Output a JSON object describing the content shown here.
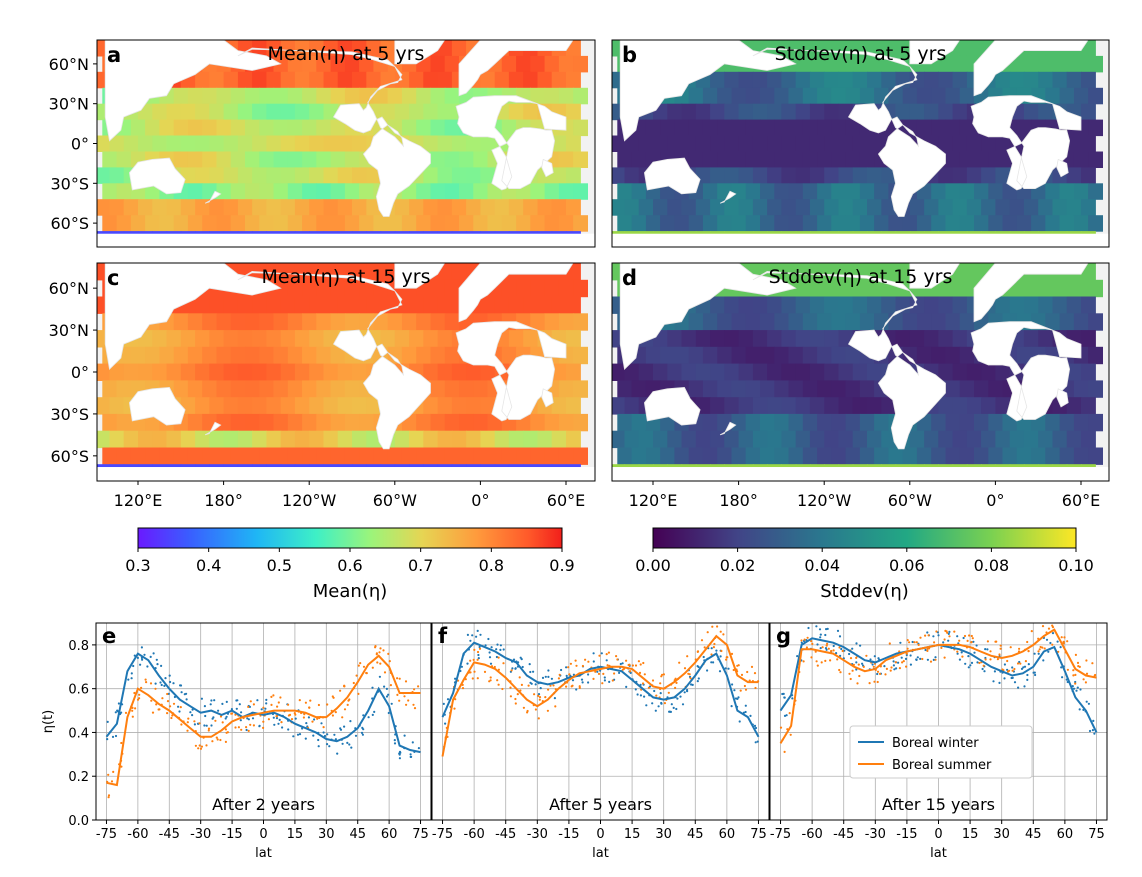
{
  "maps": [
    {
      "letter": "a",
      "title": "Mean(η) at 5 yrs",
      "kind": "mean",
      "variant": 5
    },
    {
      "letter": "b",
      "title": "Stddev(η) at 5 yrs",
      "kind": "std",
      "variant": 5
    },
    {
      "letter": "c",
      "title": "Mean(η) at 15 yrs",
      "kind": "mean",
      "variant": 15
    },
    {
      "letter": "d",
      "title": "Stddev(η) at 15 yrs",
      "kind": "std",
      "variant": 15
    }
  ],
  "map_lat_ticks": [
    "60°N",
    "30°N",
    "0°",
    "30°S",
    "60°S"
  ],
  "map_lon_ticks": [
    "120°E",
    "180°",
    "120°W",
    "60°W",
    "0°",
    "60°E"
  ],
  "colorbars": [
    {
      "label": "Mean(η)",
      "ticks": [
        "0.3",
        "0.4",
        "0.5",
        "0.6",
        "0.7",
        "0.8",
        "0.9"
      ],
      "palette": "turbo"
    },
    {
      "label": "Stddev(η)",
      "ticks": [
        "0.00",
        "0.02",
        "0.04",
        "0.06",
        "0.08",
        "0.10"
      ],
      "palette": "viridis"
    }
  ],
  "chart_data": {
    "type": "line",
    "xlabel": "lat",
    "ylabel": "η(t)",
    "xlim": [
      -80,
      80
    ],
    "ylim": [
      0.0,
      0.9
    ],
    "x_ticks": [
      "-75",
      "-60",
      "-45",
      "-30",
      "-15",
      "0",
      "15",
      "30",
      "45",
      "60",
      "75"
    ],
    "y_ticks": [
      "0.0",
      "0.2",
      "0.4",
      "0.6",
      "0.8"
    ],
    "grid": true,
    "legend": {
      "placement": "lower-right of panel g",
      "entries": [
        "Boreal winter",
        "Boreal summer"
      ]
    },
    "colors": {
      "winter": "#1f77b4",
      "summer": "#ff7f0e"
    },
    "x": [
      -75,
      -70,
      -65,
      -60,
      -55,
      -50,
      -45,
      -40,
      -35,
      -30,
      -25,
      -20,
      -15,
      -10,
      -5,
      0,
      5,
      10,
      15,
      20,
      25,
      30,
      35,
      40,
      45,
      50,
      55,
      60,
      65,
      70,
      75
    ],
    "panels": [
      {
        "letter": "e",
        "title": "After 2 years",
        "series": [
          {
            "name": "Boreal winter",
            "values": [
              0.38,
              0.44,
              0.68,
              0.76,
              0.73,
              0.66,
              0.6,
              0.55,
              0.52,
              0.49,
              0.5,
              0.48,
              0.5,
              0.47,
              0.49,
              0.48,
              0.49,
              0.47,
              0.44,
              0.42,
              0.4,
              0.37,
              0.36,
              0.38,
              0.42,
              0.5,
              0.6,
              0.52,
              0.34,
              0.32,
              0.31
            ]
          },
          {
            "name": "Boreal summer",
            "values": [
              0.17,
              0.16,
              0.47,
              0.6,
              0.57,
              0.53,
              0.5,
              0.46,
              0.42,
              0.38,
              0.38,
              0.41,
              0.45,
              0.47,
              0.48,
              0.49,
              0.5,
              0.5,
              0.5,
              0.49,
              0.47,
              0.47,
              0.51,
              0.56,
              0.63,
              0.71,
              0.75,
              0.7,
              0.58,
              0.58,
              0.58
            ]
          }
        ]
      },
      {
        "letter": "f",
        "title": "After 5 years",
        "series": [
          {
            "name": "Boreal winter",
            "values": [
              0.47,
              0.58,
              0.76,
              0.81,
              0.79,
              0.77,
              0.74,
              0.72,
              0.66,
              0.63,
              0.62,
              0.63,
              0.65,
              0.66,
              0.69,
              0.7,
              0.69,
              0.68,
              0.64,
              0.6,
              0.56,
              0.55,
              0.56,
              0.6,
              0.66,
              0.73,
              0.76,
              0.66,
              0.5,
              0.47,
              0.38
            ]
          },
          {
            "name": "Boreal summer",
            "values": [
              0.29,
              0.55,
              0.64,
              0.72,
              0.71,
              0.69,
              0.65,
              0.6,
              0.55,
              0.52,
              0.55,
              0.6,
              0.64,
              0.67,
              0.68,
              0.69,
              0.7,
              0.7,
              0.69,
              0.65,
              0.61,
              0.6,
              0.63,
              0.67,
              0.72,
              0.78,
              0.84,
              0.8,
              0.66,
              0.63,
              0.63
            ]
          }
        ]
      },
      {
        "letter": "g",
        "title": "After 15 years",
        "series": [
          {
            "name": "Boreal winter",
            "values": [
              0.5,
              0.57,
              0.8,
              0.83,
              0.82,
              0.81,
              0.79,
              0.76,
              0.73,
              0.72,
              0.74,
              0.76,
              0.77,
              0.78,
              0.79,
              0.8,
              0.79,
              0.78,
              0.76,
              0.73,
              0.7,
              0.68,
              0.66,
              0.67,
              0.7,
              0.77,
              0.79,
              0.68,
              0.56,
              0.5,
              0.4
            ]
          },
          {
            "name": "Boreal summer",
            "values": [
              0.35,
              0.43,
              0.78,
              0.78,
              0.77,
              0.76,
              0.73,
              0.7,
              0.68,
              0.69,
              0.73,
              0.75,
              0.77,
              0.78,
              0.79,
              0.8,
              0.8,
              0.8,
              0.79,
              0.77,
              0.75,
              0.74,
              0.75,
              0.77,
              0.8,
              0.84,
              0.87,
              0.78,
              0.69,
              0.66,
              0.65
            ]
          }
        ]
      }
    ]
  }
}
